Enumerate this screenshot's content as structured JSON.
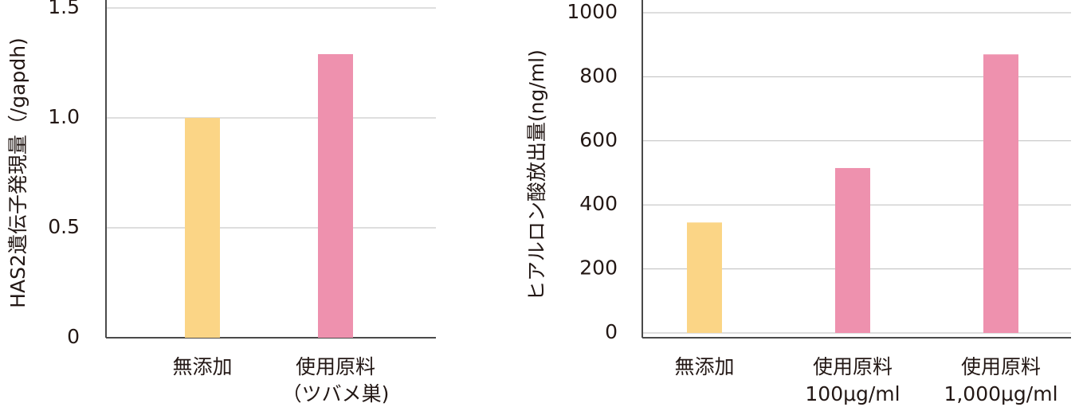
{
  "chart_data": [
    {
      "type": "bar",
      "y_label": "HAS2遺伝子発現量（/gapdh)",
      "categories": [
        "無添加",
        [
          "使用原料",
          "（ツバメ巣)"
        ]
      ],
      "values": [
        1.0,
        1.29
      ],
      "colors": [
        "#fbd586",
        "#ee91ae"
      ],
      "ylim": [
        0,
        1.5
      ],
      "yticks": [
        0,
        0.5,
        {
          "value": 1,
          "label": "1.0"
        },
        1.5
      ],
      "grid": true
    },
    {
      "type": "bar",
      "y_label": "ヒアルロン酸放出量(ng/ml)",
      "categories": [
        "無添加",
        [
          "使用原料",
          "100μg/ml"
        ],
        [
          "使用原料",
          "1,000μg/ml"
        ]
      ],
      "values": [
        345,
        515,
        870
      ],
      "colors": [
        "#fbd586",
        "#ee91ae",
        "#ee91ae"
      ],
      "ylim": [
        0,
        1000
      ],
      "yticks": [
        0,
        200,
        400,
        600,
        800,
        1000
      ],
      "grid": true
    }
  ]
}
